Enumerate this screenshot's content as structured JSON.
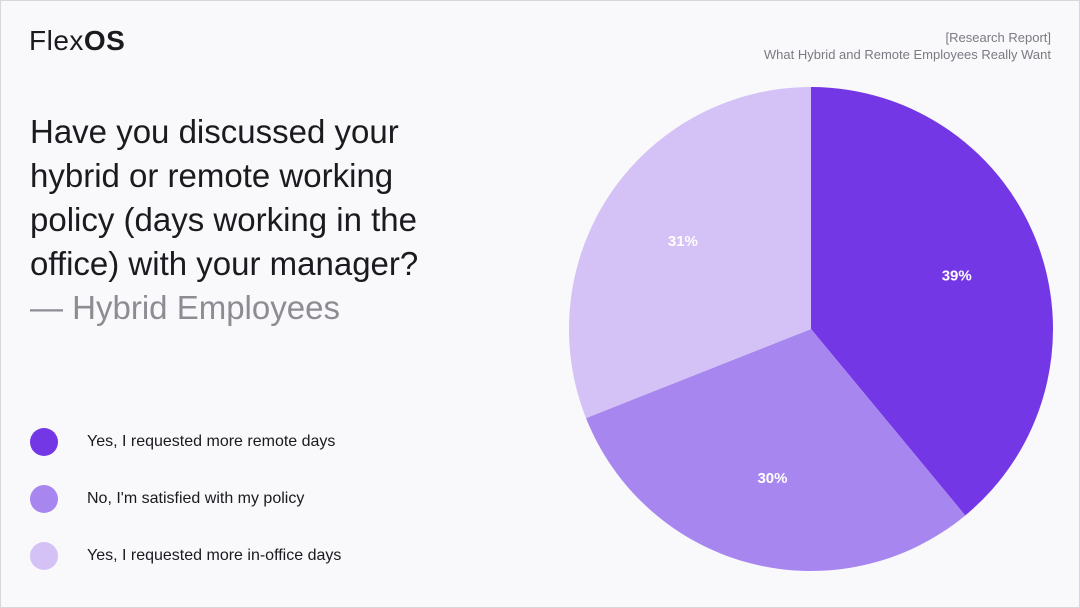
{
  "brand": {
    "name_light": "Flex",
    "name_bold": "OS"
  },
  "report": {
    "tag": "[Research Report]",
    "title": "What Hybrid and Remote Employees Really Want"
  },
  "question": {
    "text": "Have you discussed your hybrid or remote working policy (days working in the office) with your manager?",
    "subtitle": "— Hybrid Employees"
  },
  "chart_data": {
    "type": "pie",
    "title": "Have you discussed your hybrid or remote working policy (days working in the office) with your manager?",
    "subtitle": "— Hybrid Employees",
    "categories": [
      "Yes, I requested more remote days",
      "No, I'm satisfied with my policy",
      "Yes, I requested more in-office days"
    ],
    "values": [
      39,
      30,
      31
    ],
    "data_labels": [
      "39%",
      "30%",
      "31%"
    ],
    "colors": [
      "#7437e6",
      "#a787ef",
      "#d4c2f6"
    ],
    "legend_position": "bottom-left",
    "start_angle_deg": 0,
    "direction": "clockwise"
  }
}
